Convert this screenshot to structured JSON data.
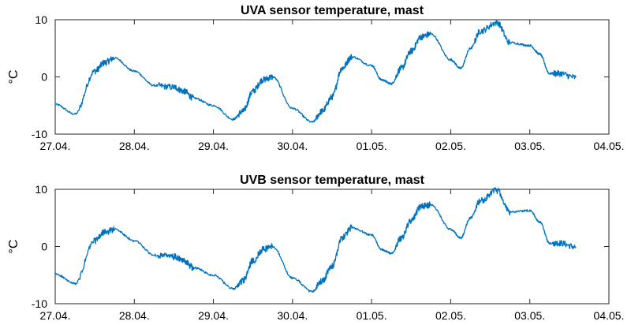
{
  "chart_data": [
    {
      "type": "line",
      "title": "UVA sensor temperature, mast",
      "ylabel": "°C",
      "xlim": [
        "27.04.",
        "04.05."
      ],
      "ylim": [
        -10,
        10
      ],
      "yticks": [
        -10,
        0,
        10
      ],
      "xtick_labels": [
        "27.04.",
        "28.04.",
        "29.04.",
        "30.04.",
        "01.05.",
        "02.05.",
        "03.05.",
        "04.05."
      ],
      "grid": false,
      "series": [
        {
          "color": "#0072BD",
          "x": [
            "27.04. 00:00",
            "27.04. 06:00",
            "27.04. 12:00",
            "27.04. 15:00",
            "27.04. 18:00",
            "28.04. 00:00",
            "28.04. 06:00",
            "28.04. 12:00",
            "28.04. 15:00",
            "28.04. 18:00",
            "29.04. 00:00",
            "29.04. 06:00",
            "29.04. 09:00",
            "29.04. 12:00",
            "29.04. 15:00",
            "29.04. 18:00",
            "30.04. 00:00",
            "30.04. 06:00",
            "30.04. 09:00",
            "30.04. 12:00",
            "30.04. 15:00",
            "30.04. 18:00",
            "01.05. 00:00",
            "01.05. 03:00",
            "01.05. 06:00",
            "01.05. 09:00",
            "01.05. 12:00",
            "01.05. 15:00",
            "01.05. 18:00",
            "02.05. 00:00",
            "02.05. 03:00",
            "02.05. 06:00",
            "02.05. 09:00",
            "02.05. 14:00",
            "02.05. 18:00",
            "03.05. 00:00",
            "03.05. 03:00",
            "03.05. 06:00",
            "03.05. 09:00",
            "03.05. 14:00"
          ],
          "values": [
            -4.8,
            -6.5,
            1.0,
            2.5,
            3.3,
            1.0,
            -1.5,
            -1.8,
            -2.5,
            -3.7,
            -5.0,
            -7.4,
            -6.0,
            -2.5,
            -0.5,
            0.0,
            -5.5,
            -7.9,
            -6.0,
            -3.5,
            1.5,
            3.5,
            2.0,
            -0.5,
            -1.2,
            1.5,
            4.5,
            7.0,
            7.5,
            3.0,
            1.5,
            5.0,
            8.0,
            9.5,
            6.0,
            5.5,
            4.0,
            0.6,
            0.6,
            -0.1
          ]
        }
      ]
    },
    {
      "type": "line",
      "title": "UVB sensor temperature, mast",
      "ylabel": "°C",
      "xlim": [
        "27.04.",
        "04.05."
      ],
      "ylim": [
        -10,
        10
      ],
      "yticks": [
        -10,
        0,
        10
      ],
      "xtick_labels": [
        "27.04.",
        "28.04.",
        "29.04.",
        "30.04.",
        "01.05.",
        "02.05.",
        "03.05.",
        "04.05."
      ],
      "grid": false,
      "series": [
        {
          "color": "#0072BD",
          "x": [
            "27.04. 00:00",
            "27.04. 06:00",
            "27.04. 12:00",
            "27.04. 15:00",
            "27.04. 18:00",
            "28.04. 00:00",
            "28.04. 06:00",
            "28.04. 12:00",
            "28.04. 15:00",
            "28.04. 18:00",
            "29.04. 00:00",
            "29.04. 06:00",
            "29.04. 09:00",
            "29.04. 12:00",
            "29.04. 15:00",
            "29.04. 18:00",
            "30.04. 00:00",
            "30.04. 06:00",
            "30.04. 09:00",
            "30.04. 12:00",
            "30.04. 15:00",
            "30.04. 18:00",
            "01.05. 00:00",
            "01.05. 03:00",
            "01.05. 06:00",
            "01.05. 09:00",
            "01.05. 12:00",
            "01.05. 15:00",
            "01.05. 18:00",
            "02.05. 00:00",
            "02.05. 03:00",
            "02.05. 06:00",
            "02.05. 09:00",
            "02.05. 14:00",
            "02.05. 18:00",
            "03.05. 00:00",
            "03.05. 03:00",
            "03.05. 06:00",
            "03.05. 09:00",
            "03.05. 14:00"
          ],
          "values": [
            -4.8,
            -6.5,
            1.0,
            2.5,
            3.0,
            1.0,
            -1.5,
            -1.8,
            -2.5,
            -3.7,
            -5.0,
            -7.4,
            -6.0,
            -2.5,
            -0.5,
            0.0,
            -5.5,
            -7.9,
            -6.0,
            -3.5,
            1.5,
            3.3,
            2.0,
            -0.5,
            -1.2,
            1.5,
            4.5,
            7.0,
            7.3,
            3.0,
            1.5,
            5.0,
            8.0,
            9.8,
            6.0,
            6.3,
            4.3,
            0.6,
            0.6,
            -0.1
          ]
        }
      ]
    }
  ]
}
